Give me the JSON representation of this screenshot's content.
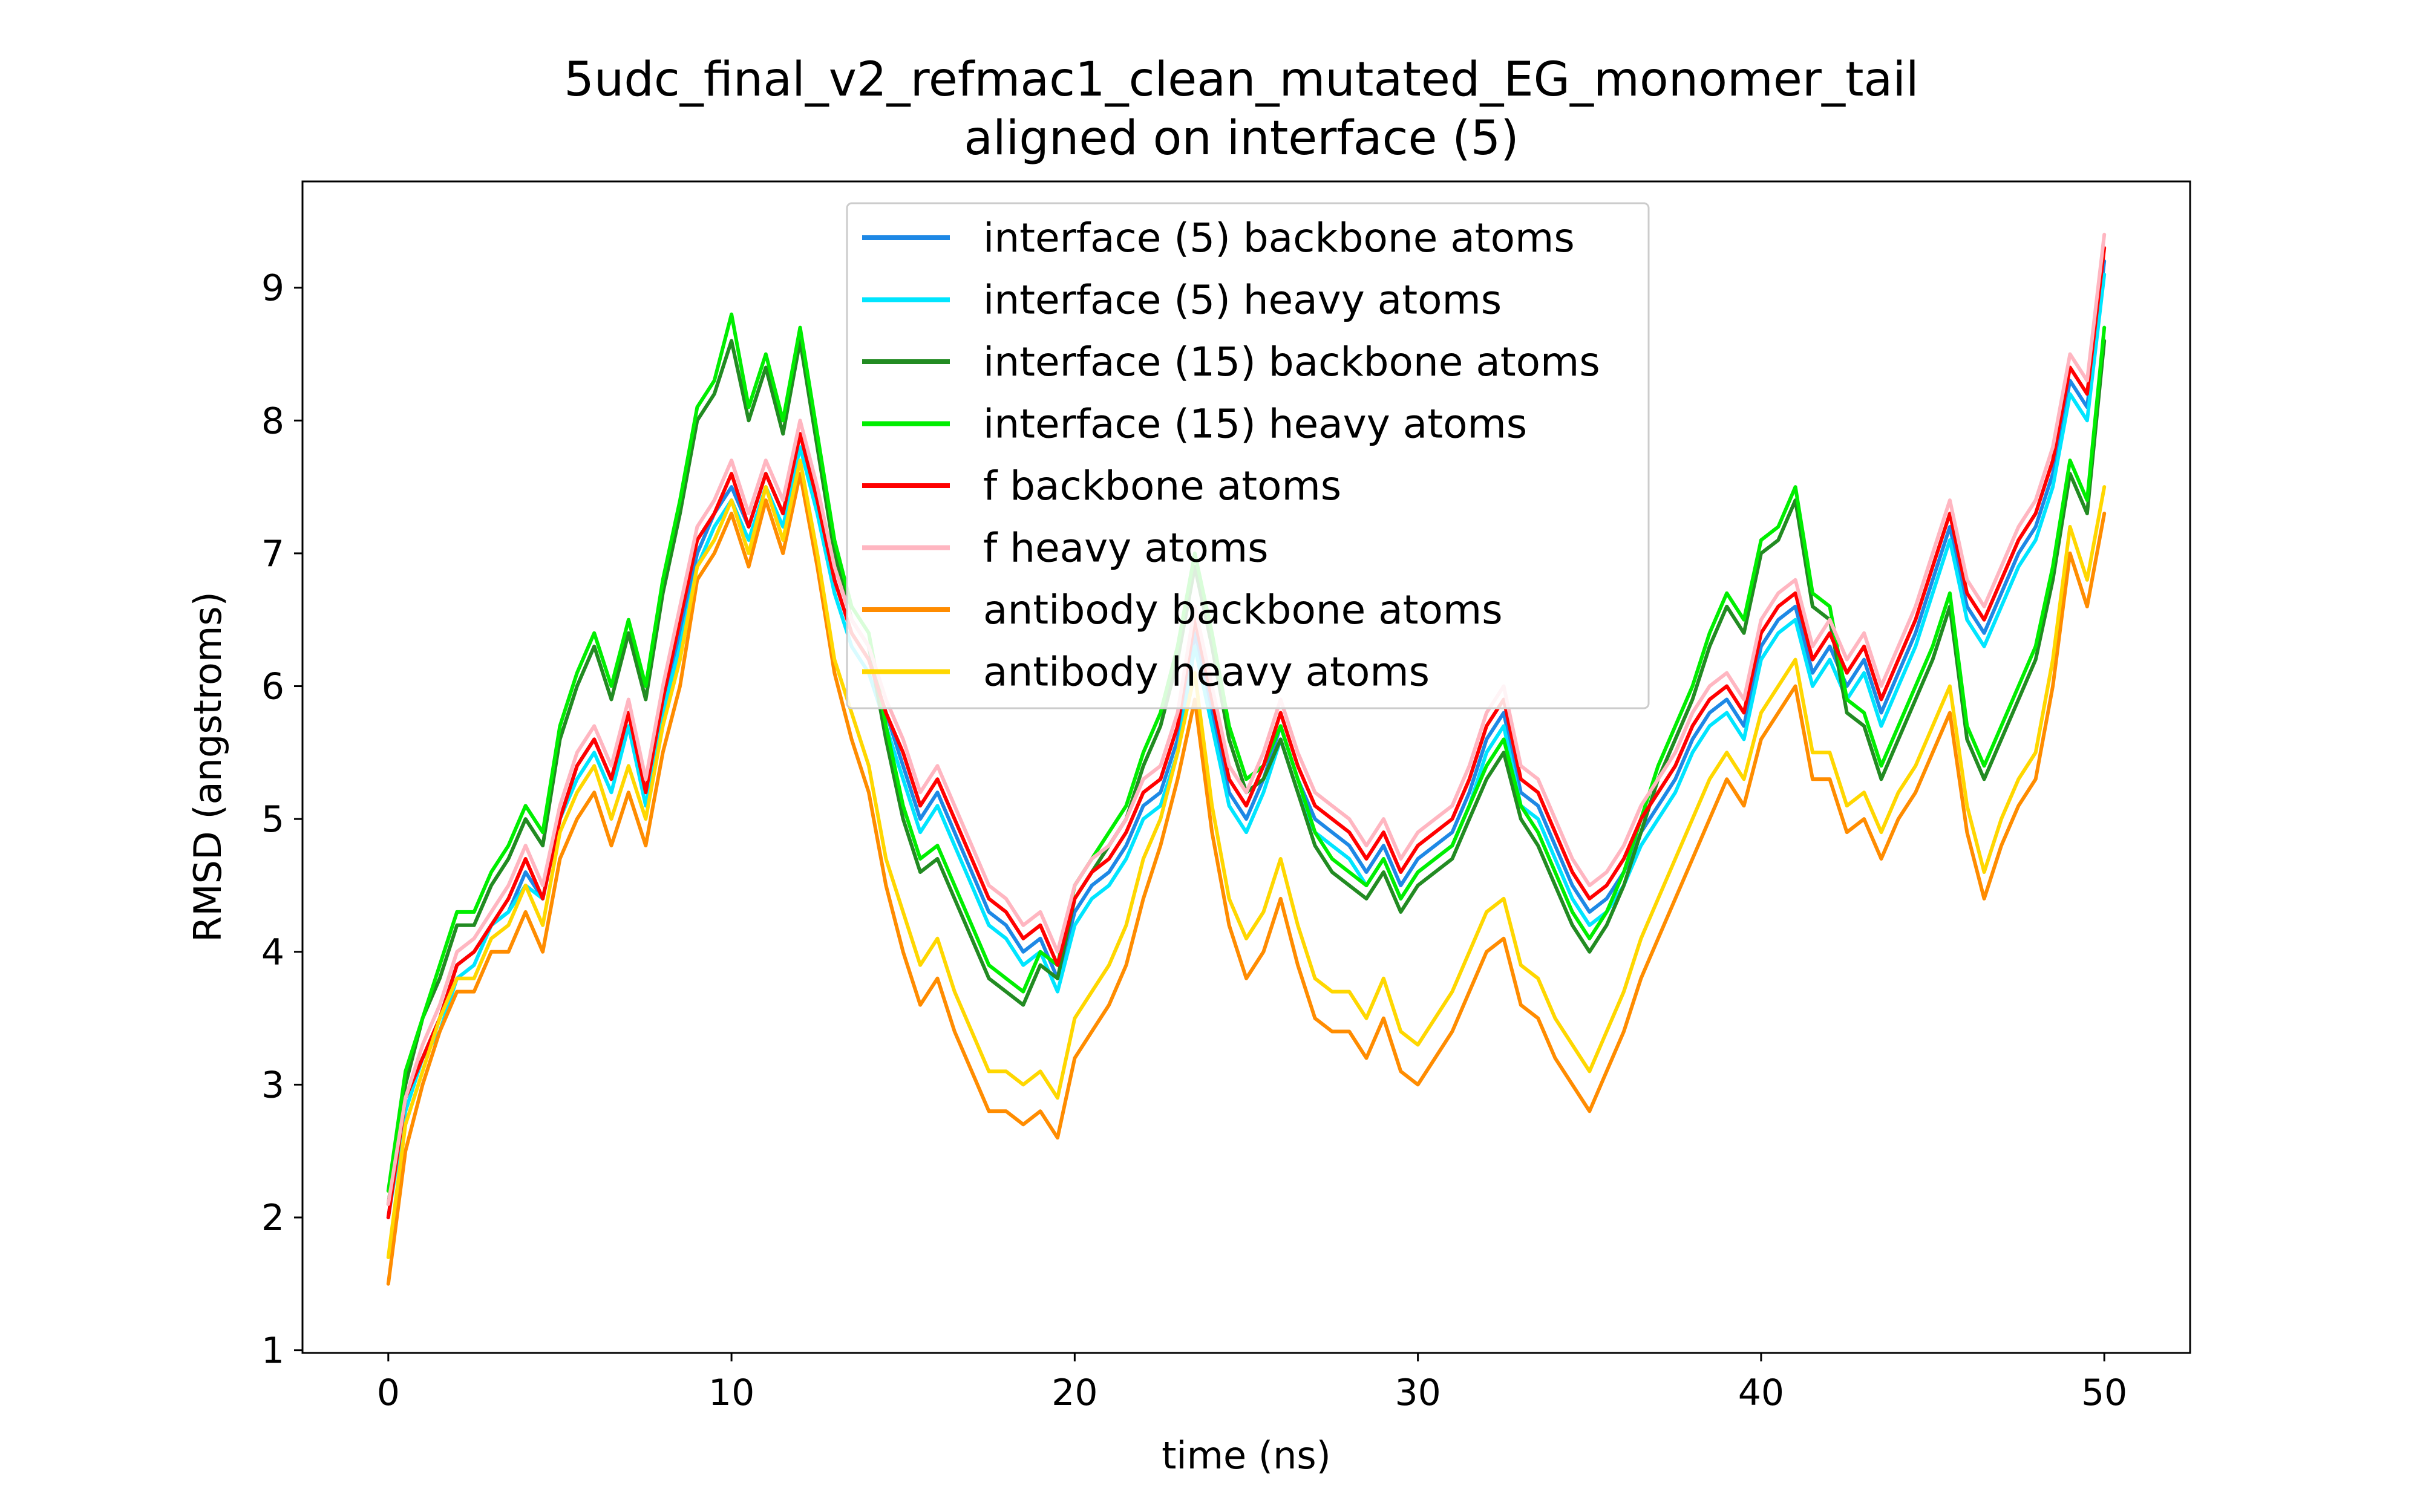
{
  "chart_data": {
    "type": "line",
    "title": "5udc_final_v2_refmac1_clean_mutated_EG_monomer_tail",
    "subtitle": "aligned on interface (5)",
    "xlabel": "time (ns)",
    "ylabel": "RMSD (angstroms)",
    "xlim": [
      -2.5,
      52.5
    ],
    "ylim": [
      0.98,
      9.8
    ],
    "xticks": [
      0,
      10,
      20,
      30,
      40,
      50
    ],
    "yticks": [
      1,
      2,
      3,
      4,
      5,
      6,
      7,
      8,
      9
    ],
    "grid": false,
    "legend_position": "upper center",
    "x": [
      0,
      0.5,
      1,
      1.5,
      2,
      2.5,
      3,
      3.5,
      4,
      4.5,
      5,
      5.5,
      6,
      6.5,
      7,
      7.5,
      8,
      8.5,
      9,
      9.5,
      10,
      10.5,
      11,
      11.5,
      12,
      12.5,
      13,
      13.5,
      14,
      14.5,
      15,
      15.5,
      16,
      16.5,
      17,
      17.5,
      18,
      18.5,
      19,
      19.5,
      20,
      20.5,
      21,
      21.5,
      22,
      22.5,
      23,
      23.5,
      24,
      24.5,
      25,
      25.5,
      26,
      26.5,
      27,
      27.5,
      28,
      28.5,
      29,
      29.5,
      30,
      30.5,
      31,
      31.5,
      32,
      32.5,
      33,
      33.5,
      34,
      34.5,
      35,
      35.5,
      36,
      36.5,
      37,
      37.5,
      38,
      38.5,
      39,
      39.5,
      40,
      40.5,
      41,
      41.5,
      42,
      42.5,
      43,
      43.5,
      44,
      44.5,
      45,
      45.5,
      46,
      46.5,
      47,
      47.5,
      48,
      48.5,
      49,
      49.5,
      50
    ],
    "series": [
      {
        "name": "interface (5) backbone atoms",
        "color": "#1e88e5",
        "values": [
          2.0,
          2.9,
          3.2,
          3.5,
          3.9,
          4.0,
          4.2,
          4.3,
          4.6,
          4.4,
          5.0,
          5.4,
          5.6,
          5.3,
          5.8,
          5.2,
          5.9,
          6.4,
          7.0,
          7.3,
          7.5,
          7.2,
          7.6,
          7.3,
          7.9,
          7.4,
          6.8,
          6.4,
          6.2,
          5.8,
          5.4,
          5.0,
          5.2,
          4.9,
          4.6,
          4.3,
          4.2,
          4.0,
          4.1,
          3.8,
          4.3,
          4.5,
          4.6,
          4.8,
          5.1,
          5.2,
          5.6,
          6.4,
          5.8,
          5.2,
          5.0,
          5.3,
          5.7,
          5.3,
          5.0,
          4.9,
          4.8,
          4.6,
          4.8,
          4.5,
          4.7,
          4.8,
          4.9,
          5.2,
          5.6,
          5.8,
          5.2,
          5.1,
          4.8,
          4.5,
          4.3,
          4.4,
          4.6,
          4.9,
          5.1,
          5.3,
          5.6,
          5.8,
          5.9,
          5.7,
          6.3,
          6.5,
          6.6,
          6.1,
          6.3,
          6.0,
          6.2,
          5.8,
          6.1,
          6.4,
          6.8,
          7.2,
          6.6,
          6.4,
          6.7,
          7.0,
          7.2,
          7.6,
          8.3,
          8.1,
          9.2
        ]
      },
      {
        "name": "interface (5) heavy atoms",
        "color": "#00e5ff",
        "values": [
          2.0,
          2.8,
          3.2,
          3.4,
          3.8,
          3.9,
          4.2,
          4.3,
          4.5,
          4.4,
          5.0,
          5.3,
          5.5,
          5.2,
          5.7,
          5.1,
          5.8,
          6.3,
          6.9,
          7.2,
          7.4,
          7.1,
          7.5,
          7.2,
          7.8,
          7.3,
          6.7,
          6.3,
          6.1,
          5.7,
          5.3,
          4.9,
          5.1,
          4.8,
          4.5,
          4.2,
          4.1,
          3.9,
          4.0,
          3.7,
          4.2,
          4.4,
          4.5,
          4.7,
          5.0,
          5.1,
          5.5,
          6.3,
          5.7,
          5.1,
          4.9,
          5.2,
          5.6,
          5.2,
          4.9,
          4.8,
          4.7,
          4.5,
          4.7,
          4.4,
          4.6,
          4.7,
          4.8,
          5.1,
          5.5,
          5.7,
          5.1,
          5.0,
          4.7,
          4.4,
          4.2,
          4.3,
          4.5,
          4.8,
          5.0,
          5.2,
          5.5,
          5.7,
          5.8,
          5.6,
          6.2,
          6.4,
          6.5,
          6.0,
          6.2,
          5.9,
          6.1,
          5.7,
          6.0,
          6.3,
          6.7,
          7.1,
          6.5,
          6.3,
          6.6,
          6.9,
          7.1,
          7.5,
          8.2,
          8.0,
          9.1
        ]
      },
      {
        "name": "interface (15) backbone atoms",
        "color": "#228b22",
        "values": [
          2.1,
          3.0,
          3.5,
          3.8,
          4.2,
          4.2,
          4.5,
          4.7,
          5.0,
          4.8,
          5.6,
          6.0,
          6.3,
          5.9,
          6.4,
          5.9,
          6.7,
          7.3,
          8.0,
          8.2,
          8.6,
          8.0,
          8.4,
          7.9,
          8.6,
          7.8,
          7.0,
          6.5,
          6.3,
          5.6,
          5.0,
          4.6,
          4.7,
          4.4,
          4.1,
          3.8,
          3.7,
          3.6,
          3.9,
          3.8,
          4.4,
          4.6,
          4.8,
          5.0,
          5.4,
          5.7,
          6.2,
          6.9,
          6.3,
          5.6,
          5.2,
          5.3,
          5.6,
          5.2,
          4.8,
          4.6,
          4.5,
          4.4,
          4.6,
          4.3,
          4.5,
          4.6,
          4.7,
          5.0,
          5.3,
          5.5,
          5.0,
          4.8,
          4.5,
          4.2,
          4.0,
          4.2,
          4.5,
          4.9,
          5.3,
          5.6,
          5.9,
          6.3,
          6.6,
          6.4,
          7.0,
          7.1,
          7.4,
          6.6,
          6.5,
          5.8,
          5.7,
          5.3,
          5.6,
          5.9,
          6.2,
          6.6,
          5.6,
          5.3,
          5.6,
          5.9,
          6.2,
          6.8,
          7.6,
          7.3,
          8.6
        ]
      },
      {
        "name": "interface (15) heavy atoms",
        "color": "#00ee00",
        "values": [
          2.2,
          3.1,
          3.5,
          3.9,
          4.3,
          4.3,
          4.6,
          4.8,
          5.1,
          4.9,
          5.7,
          6.1,
          6.4,
          6.0,
          6.5,
          6.0,
          6.8,
          7.4,
          8.1,
          8.3,
          8.8,
          8.1,
          8.5,
          8.0,
          8.7,
          7.9,
          7.1,
          6.6,
          6.4,
          5.7,
          5.1,
          4.7,
          4.8,
          4.5,
          4.2,
          3.9,
          3.8,
          3.7,
          4.0,
          3.9,
          4.5,
          4.7,
          4.9,
          5.1,
          5.5,
          5.8,
          6.3,
          7.0,
          6.4,
          5.7,
          5.3,
          5.4,
          5.7,
          5.3,
          4.9,
          4.7,
          4.6,
          4.5,
          4.7,
          4.4,
          4.6,
          4.7,
          4.8,
          5.1,
          5.4,
          5.6,
          5.1,
          4.9,
          4.6,
          4.3,
          4.1,
          4.3,
          4.6,
          5.0,
          5.4,
          5.7,
          6.0,
          6.4,
          6.7,
          6.5,
          7.1,
          7.2,
          7.5,
          6.7,
          6.6,
          5.9,
          5.8,
          5.4,
          5.7,
          6.0,
          6.3,
          6.7,
          5.7,
          5.4,
          5.7,
          6.0,
          6.3,
          6.9,
          7.7,
          7.4,
          8.7
        ]
      },
      {
        "name": "f backbone atoms",
        "color": "#ff0000",
        "values": [
          2.0,
          2.9,
          3.2,
          3.5,
          3.9,
          4.0,
          4.2,
          4.4,
          4.7,
          4.4,
          5.0,
          5.4,
          5.6,
          5.3,
          5.8,
          5.2,
          5.9,
          6.5,
          7.1,
          7.3,
          7.6,
          7.2,
          7.6,
          7.3,
          7.9,
          7.4,
          6.8,
          6.4,
          6.2,
          5.8,
          5.5,
          5.1,
          5.3,
          5.0,
          4.7,
          4.4,
          4.3,
          4.1,
          4.2,
          3.9,
          4.4,
          4.6,
          4.7,
          4.9,
          5.2,
          5.3,
          5.7,
          6.5,
          5.9,
          5.3,
          5.1,
          5.4,
          5.8,
          5.4,
          5.1,
          5.0,
          4.9,
          4.7,
          4.9,
          4.6,
          4.8,
          4.9,
          5.0,
          5.3,
          5.7,
          5.9,
          5.3,
          5.2,
          4.9,
          4.6,
          4.4,
          4.5,
          4.7,
          5.0,
          5.2,
          5.4,
          5.7,
          5.9,
          6.0,
          5.8,
          6.4,
          6.6,
          6.7,
          6.2,
          6.4,
          6.1,
          6.3,
          5.9,
          6.2,
          6.5,
          6.9,
          7.3,
          6.7,
          6.5,
          6.8,
          7.1,
          7.3,
          7.7,
          8.4,
          8.2,
          9.3
        ]
      },
      {
        "name": "f heavy atoms",
        "color": "#ffb6c1",
        "values": [
          2.1,
          2.9,
          3.3,
          3.6,
          4.0,
          4.1,
          4.3,
          4.5,
          4.8,
          4.5,
          5.1,
          5.5,
          5.7,
          5.4,
          5.9,
          5.3,
          6.0,
          6.6,
          7.2,
          7.4,
          7.7,
          7.3,
          7.7,
          7.4,
          8.0,
          7.5,
          6.9,
          6.5,
          6.3,
          5.9,
          5.6,
          5.2,
          5.4,
          5.1,
          4.8,
          4.5,
          4.4,
          4.2,
          4.3,
          4.0,
          4.5,
          4.7,
          4.8,
          5.0,
          5.3,
          5.4,
          5.8,
          6.6,
          6.0,
          5.4,
          5.2,
          5.5,
          5.9,
          5.5,
          5.2,
          5.1,
          5.0,
          4.8,
          5.0,
          4.7,
          4.9,
          5.0,
          5.1,
          5.4,
          5.8,
          6.0,
          5.4,
          5.3,
          5.0,
          4.7,
          4.5,
          4.6,
          4.8,
          5.1,
          5.3,
          5.5,
          5.8,
          6.0,
          6.1,
          5.9,
          6.5,
          6.7,
          6.8,
          6.3,
          6.5,
          6.2,
          6.4,
          6.0,
          6.3,
          6.6,
          7.0,
          7.4,
          6.8,
          6.6,
          6.9,
          7.2,
          7.4,
          7.8,
          8.5,
          8.3,
          9.4
        ]
      },
      {
        "name": "antibody backbone atoms",
        "color": "#ff8c00",
        "values": [
          1.5,
          2.5,
          3.0,
          3.4,
          3.7,
          3.7,
          4.0,
          4.0,
          4.3,
          4.0,
          4.7,
          5.0,
          5.2,
          4.8,
          5.2,
          4.8,
          5.5,
          6.0,
          6.8,
          7.0,
          7.3,
          6.9,
          7.4,
          7.0,
          7.6,
          6.9,
          6.1,
          5.6,
          5.2,
          4.5,
          4.0,
          3.6,
          3.8,
          3.4,
          3.1,
          2.8,
          2.8,
          2.7,
          2.8,
          2.6,
          3.2,
          3.4,
          3.6,
          3.9,
          4.4,
          4.8,
          5.3,
          5.9,
          4.9,
          4.2,
          3.8,
          4.0,
          4.4,
          3.9,
          3.5,
          3.4,
          3.4,
          3.2,
          3.5,
          3.1,
          3.0,
          3.2,
          3.4,
          3.7,
          4.0,
          4.1,
          3.6,
          3.5,
          3.2,
          3.0,
          2.8,
          3.1,
          3.4,
          3.8,
          4.1,
          4.4,
          4.7,
          5.0,
          5.3,
          5.1,
          5.6,
          5.8,
          6.0,
          5.3,
          5.3,
          4.9,
          5.0,
          4.7,
          5.0,
          5.2,
          5.5,
          5.8,
          4.9,
          4.4,
          4.8,
          5.1,
          5.3,
          6.0,
          7.0,
          6.6,
          7.3
        ]
      },
      {
        "name": "antibody heavy atoms",
        "color": "#ffd700",
        "values": [
          1.7,
          2.7,
          3.1,
          3.5,
          3.8,
          3.8,
          4.1,
          4.2,
          4.5,
          4.2,
          4.9,
          5.2,
          5.4,
          5.0,
          5.4,
          5.0,
          5.7,
          6.2,
          6.9,
          7.1,
          7.4,
          7.0,
          7.5,
          7.1,
          7.7,
          7.0,
          6.2,
          5.8,
          5.4,
          4.7,
          4.3,
          3.9,
          4.1,
          3.7,
          3.4,
          3.1,
          3.1,
          3.0,
          3.1,
          2.9,
          3.5,
          3.7,
          3.9,
          4.2,
          4.7,
          5.0,
          5.5,
          6.1,
          5.1,
          4.4,
          4.1,
          4.3,
          4.7,
          4.2,
          3.8,
          3.7,
          3.7,
          3.5,
          3.8,
          3.4,
          3.3,
          3.5,
          3.7,
          4.0,
          4.3,
          4.4,
          3.9,
          3.8,
          3.5,
          3.3,
          3.1,
          3.4,
          3.7,
          4.1,
          4.4,
          4.7,
          5.0,
          5.3,
          5.5,
          5.3,
          5.8,
          6.0,
          6.2,
          5.5,
          5.5,
          5.1,
          5.2,
          4.9,
          5.2,
          5.4,
          5.7,
          6.0,
          5.1,
          4.6,
          5.0,
          5.3,
          5.5,
          6.2,
          7.2,
          6.8,
          7.5
        ]
      }
    ]
  }
}
